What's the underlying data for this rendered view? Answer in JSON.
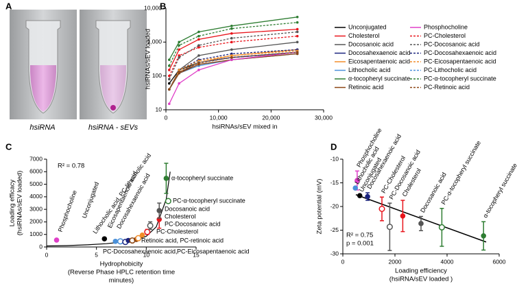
{
  "photo": {
    "panel": "A",
    "captions": [
      "hsiRNA",
      "hsiRNA - sEVs"
    ]
  },
  "chart_data": [
    {
      "type": "line",
      "panel": "B",
      "ylabel": "hsiRNAs/sEV loaded",
      "xlabel": "hsiRNAs/sEV mixed in",
      "yscale": "log",
      "legend": "outside-right",
      "xlim": [
        0,
        30000
      ],
      "xticks": [
        0,
        {
          "value": 10000,
          "label": "10,000"
        },
        {
          "value": 20000,
          "label": "20,000"
        },
        {
          "value": 30000,
          "label": "30,000"
        }
      ],
      "ylim": [
        10,
        10000
      ],
      "yticks": [
        10,
        100,
        {
          "value": 1000,
          "label": "1,000"
        },
        {
          "value": 10000,
          "label": "10,000"
        }
      ],
      "x": [
        625,
        2500,
        6250,
        12500,
        25000
      ],
      "series": [
        {
          "name": "Unconjugated",
          "color": "#000000",
          "dashed": false,
          "values": [
            60,
            150,
            250,
            350,
            500
          ]
        },
        {
          "name": "Cholesterol",
          "color": "#e8141b",
          "dashed": false,
          "values": [
            150,
            600,
            1200,
            1800,
            2400
          ]
        },
        {
          "name": "Docosanoic acid",
          "color": "#555555",
          "dashed": false,
          "values": [
            40,
            150,
            400,
            600,
            1000
          ]
        },
        {
          "name": "Docosahexaenoic acid",
          "color": "#1a237e",
          "dashed": false,
          "values": [
            40,
            120,
            250,
            350,
            500
          ]
        },
        {
          "name": "Eicosapentaenoic acid",
          "color": "#f28c28",
          "dashed": false,
          "values": [
            40,
            130,
            250,
            400,
            600
          ]
        },
        {
          "name": "Lithocholic acid",
          "color": "#4a90d9",
          "dashed": false,
          "values": [
            40,
            120,
            200,
            300,
            450
          ]
        },
        {
          "name": "α-tocopheryl succinate",
          "color": "#2e7d32",
          "dashed": false,
          "values": [
            300,
            1000,
            2000,
            3000,
            5500
          ]
        },
        {
          "name": "Retinoic acid",
          "color": "#8b4513",
          "dashed": false,
          "values": [
            40,
            120,
            220,
            300,
            450
          ]
        },
        {
          "name": "Phosphocholine",
          "color": "#e040c8",
          "dashed": false,
          "values": [
            15,
            60,
            150,
            300,
            500
          ]
        },
        {
          "name": "PC-Cholesterol",
          "color": "#e8141b",
          "dashed": true,
          "values": [
            100,
            400,
            700,
            1000,
            1500
          ]
        },
        {
          "name": "PC-Docosanoic acid",
          "color": "#555555",
          "dashed": true,
          "values": [
            80,
            350,
            800,
            1300,
            2000
          ]
        },
        {
          "name": "PC-Docosahexaenoic acid",
          "color": "#1a237e",
          "dashed": true,
          "values": [
            40,
            150,
            300,
            450,
            600
          ]
        },
        {
          "name": "PC-Eicosapentaenoic acid",
          "color": "#f28c28",
          "dashed": true,
          "values": [
            40,
            150,
            280,
            400,
            550
          ]
        },
        {
          "name": "PC-Lithocholic acid",
          "color": "#4a90d9",
          "dashed": true,
          "values": [
            40,
            130,
            250,
            350,
            500
          ]
        },
        {
          "name": "PC-α-tocopheryl succinate",
          "color": "#2e7d32",
          "dashed": true,
          "values": [
            200,
            800,
            1500,
            2500,
            3800
          ]
        },
        {
          "name": "PC-Retinoic acid",
          "color": "#8b4513",
          "dashed": true,
          "values": [
            40,
            130,
            240,
            350,
            500
          ]
        }
      ]
    },
    {
      "type": "scatter",
      "panel": "C",
      "ylabel": [
        "Loading efficacy",
        "(hsiRNAs/sEV loaded)"
      ],
      "xlabel": [
        "Hydrophobicity",
        "(Reverse Phase HPLC retention time",
        "minutes)"
      ],
      "stat": [
        "R² = 0.78"
      ],
      "xlim": [
        0,
        15
      ],
      "xticks": [
        0,
        5,
        10,
        15
      ],
      "ylim": [
        0,
        7000
      ],
      "yticks": [
        0,
        1000,
        2000,
        3000,
        4000,
        5000,
        6000,
        7000
      ],
      "points": [
        {
          "x": 1.0,
          "y": 550,
          "color": "#e040c8",
          "hollow": false
        },
        {
          "x": 5.8,
          "y": 650,
          "color": "#000000",
          "hollow": false
        },
        {
          "x": 6.9,
          "y": 450,
          "color": "#4a90d9",
          "hollow": false
        },
        {
          "x": 7.4,
          "y": 450,
          "color": "#4a90d9",
          "hollow": true
        },
        {
          "x": 7.9,
          "y": 400,
          "color": "#1a237e",
          "hollow": true
        },
        {
          "x": 8.2,
          "y": 520,
          "color": "#1a237e",
          "hollow": false
        },
        {
          "x": 8.6,
          "y": 520,
          "color": "#8b4513",
          "hollow": true
        },
        {
          "x": 9.0,
          "y": 600,
          "color": "#8b4513",
          "hollow": false
        },
        {
          "x": 9.2,
          "y": 700,
          "color": "#f28c28",
          "hollow": true
        },
        {
          "x": 9.6,
          "y": 950,
          "color": "#f28c28",
          "hollow": false
        },
        {
          "x": 10.1,
          "y": 1200,
          "color": "#e8141b",
          "hollow": true,
          "error": 200
        },
        {
          "x": 10.4,
          "y": 1700,
          "color": "#555555",
          "hollow": true,
          "error": 300
        },
        {
          "x": 11.3,
          "y": 2200,
          "color": "#e8141b",
          "hollow": false,
          "error": 700
        },
        {
          "x": 11.3,
          "y": 2900,
          "color": "#555555",
          "hollow": false,
          "error": 600
        },
        {
          "x": 12.2,
          "y": 3660,
          "color": "#2e7d32",
          "hollow": true
        },
        {
          "x": 12.0,
          "y": 5470,
          "color": "#2e7d32",
          "hollow": false,
          "error": 1200
        }
      ],
      "fit": {
        "x": [
          0,
          2,
          4,
          6,
          8,
          9,
          10,
          11,
          12,
          12.4
        ],
        "y": [
          80,
          110,
          170,
          260,
          430,
          580,
          850,
          1600,
          3800,
          6000
        ]
      },
      "annotations": [
        {
          "text": "Phosphocholine",
          "color": "#e040c8"
        },
        {
          "text": "Unconjugated",
          "color": "#000000"
        },
        {
          "text": "Lithocholic acid, PC-lithocholic acid",
          "color": "#4a90d9"
        },
        {
          "text": "Eicosapentaenoic acid",
          "color": "#f28c28"
        },
        {
          "text": "Docosahexaenoic acid",
          "color": "#1a237e"
        },
        {
          "text": "α-tocopheryl succinate",
          "color": "#2e7d32"
        },
        {
          "text": "PC-α-tocopheryl succinate",
          "color": "#2e7d32"
        },
        {
          "text": "Docosanoic acid",
          "color": "#555555"
        },
        {
          "text": "Cholesterol",
          "color": "#e8141b"
        },
        {
          "text": "PC-Docosanoic acid",
          "color": "#555555"
        },
        {
          "text": "PC-Cholesterol",
          "color": "#e8141b"
        },
        {
          "text": "Retinoic acid, PC-retinoic acid",
          "color": "#8b4513"
        },
        {
          "text": "PC-Docosahexaenoic acid,",
          "color": "#1a237e"
        },
        {
          "text": "PC-Eicosapentaenoic acid",
          "color": "#f28c28"
        }
      ]
    },
    {
      "type": "scatter",
      "panel": "D",
      "ylabel": [
        "Zeta potential (mV)"
      ],
      "xlabel": [
        "Loading efficiency",
        "(hsiRNA/sEV loaded )"
      ],
      "stat": [
        "R² = 0.75",
        "p = 0.001"
      ],
      "xlim": [
        0,
        6000
      ],
      "xticks": [
        0,
        2000,
        4000,
        6000
      ],
      "ylim": [
        -30,
        -10
      ],
      "yticks": [
        -30,
        -25,
        -20,
        -15,
        -10
      ],
      "points": [
        {
          "name": "Phosphocholine",
          "x": 550,
          "y": -14.5,
          "color": "#e040c8",
          "hollow": false,
          "error": 2
        },
        {
          "name": "Lithocholic acid",
          "x": 480,
          "y": -16.1,
          "color": "#4a90d9",
          "hollow": false
        },
        {
          "name": "Unconjugated",
          "x": 650,
          "y": -17.7,
          "color": "#000000",
          "hollow": false
        },
        {
          "name": "Docosahexaenoic acid",
          "x": 950,
          "y": -17.9,
          "color": "#1a237e",
          "hollow": false,
          "error": 0.8
        },
        {
          "name": "PC-Cholesterol",
          "x": 1500,
          "y": -20.5,
          "color": "#e8141b",
          "hollow": true,
          "error": 2.5
        },
        {
          "name": "PC-Docosanoic acid",
          "x": 1800,
          "y": -24.3,
          "color": "#555555",
          "hollow": true,
          "error": 5
        },
        {
          "name": "Cholesterol",
          "x": 2300,
          "y": -22,
          "color": "#e8141b",
          "hollow": false,
          "error": 3.3
        },
        {
          "name": "Docosanoic acid",
          "x": 3000,
          "y": -23.6,
          "color": "#555555",
          "hollow": false,
          "error": 1.5
        },
        {
          "name": "PC-α-tocopheryl succinate",
          "x": 3800,
          "y": -24.4,
          "color": "#2e7d32",
          "hollow": true,
          "error": 4
        },
        {
          "name": "α-tocopheryl succinate",
          "x": 5400,
          "y": -26.2,
          "color": "#2e7d32",
          "hollow": false,
          "error": 3
        }
      ],
      "fit": {
        "x": [
          500,
          5500
        ],
        "y": [
          -17.5,
          -27.5
        ]
      }
    }
  ]
}
